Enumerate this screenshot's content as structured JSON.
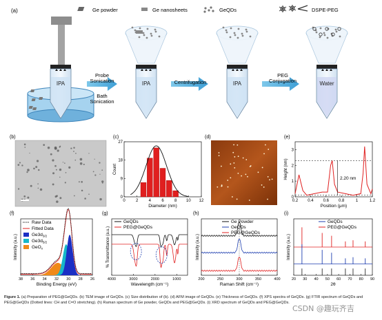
{
  "panel_labels": [
    "(a)",
    "(b)",
    "(c)",
    "(d)",
    "(e)",
    "(f)",
    "(g)",
    "(h)",
    "(i)"
  ],
  "scheme": {
    "legend": {
      "ge_powder": "Ge powder",
      "ge_nanosheets": "Ge nanosheets",
      "geqds": "GeQDs",
      "dspe_peg": "DSPE-PEG"
    },
    "tube_labels": [
      "IPA",
      "IPA",
      "IPA",
      "Water"
    ],
    "steps": {
      "probe_sonication_1": "Probe",
      "probe_sonication_2": "Sonication",
      "bath_sonication_1": "Bath",
      "bath_sonication_2": "Sonication",
      "centrifugation": "Centrifugation",
      "peg_conjugation_1": "PEG",
      "peg_conjugation_2": "Conjugation"
    }
  },
  "chart_data": [
    {
      "id": "c",
      "type": "bar",
      "categories": [
        3,
        4,
        5,
        6,
        7,
        8
      ],
      "values": [
        7,
        19,
        24,
        14,
        8,
        3
      ],
      "fit": "gaussian",
      "xlabel": "Diameter (nm)",
      "ylabel": "Count",
      "xticks": [
        0,
        2,
        4,
        6,
        8,
        10,
        12
      ],
      "yticks": [
        0,
        9,
        18,
        27
      ],
      "xlim": [
        0,
        12
      ],
      "ylim": [
        0,
        27
      ]
    },
    {
      "id": "e",
      "type": "line",
      "x": [
        0.2,
        0.25,
        0.3,
        0.35,
        0.45,
        0.55,
        0.62,
        0.66,
        0.68,
        0.71,
        0.75,
        0.85,
        0.95,
        1.05,
        1.08,
        1.1,
        1.13,
        1.18,
        1.2
      ],
      "y": [
        0.2,
        1.4,
        0.4,
        0.1,
        0.2,
        0.3,
        0.3,
        2.0,
        2.3,
        0.8,
        0.3,
        0.2,
        0.1,
        0.2,
        1.5,
        3.2,
        0.8,
        0.2,
        0.5
      ],
      "xlabel": "Position (μm)",
      "ylabel": "Height (nm)",
      "xticks": [
        0.2,
        0.4,
        0.6,
        0.8,
        1.0,
        1.2
      ],
      "yticks": [
        0,
        1,
        2,
        3
      ],
      "xlim": [
        0.2,
        1.2
      ],
      "ylim": [
        0,
        3.5
      ],
      "annotation": "2.20 nm",
      "dashed_levels": [
        2.3,
        0.1
      ]
    },
    {
      "id": "f",
      "type": "area",
      "xlabel": "Binding Energy (eV)",
      "ylabel": "Intensity (a.u.)",
      "xticks": [
        38,
        36,
        34,
        32,
        30,
        28,
        26
      ],
      "xlim": [
        38,
        26
      ],
      "series": [
        {
          "name": "Raw Data",
          "peak": 30.0
        },
        {
          "name": "Fitted Data",
          "peak": 30.0
        },
        {
          "name": "Ge3d",
          "sub": "3/2",
          "peak": 29.8
        },
        {
          "name": "Ge3d",
          "sub": "5/2",
          "peak": 30.4
        },
        {
          "name": "GeO",
          "sub": "x",
          "peak": 31.8
        }
      ]
    },
    {
      "id": "g",
      "type": "line",
      "xlabel": "Wavelength (cm⁻¹)",
      "ylabel": "% Transmittance (a.u.)",
      "xticks": [
        4000,
        3000,
        2000,
        1000
      ],
      "xlim": [
        4000,
        500
      ],
      "series": [
        {
          "name": "GeQDs"
        },
        {
          "name": "PEG@GeQDs"
        }
      ]
    },
    {
      "id": "h",
      "type": "line",
      "xlabel": "Raman Shift (cm⁻¹)",
      "ylabel": "Intensity (a.u.)",
      "xticks": [
        200,
        250,
        300,
        350,
        400
      ],
      "xlim": [
        200,
        400
      ],
      "series": [
        {
          "name": "Ge Powder",
          "peak": 300
        },
        {
          "name": "GeQDs",
          "peak": 300
        },
        {
          "name": "PEG@GeQDs",
          "peak": 300
        }
      ]
    },
    {
      "id": "i",
      "type": "line",
      "xlabel": "2θ",
      "ylabel": "Intensity (a.u.)",
      "xticks": [
        20,
        30,
        40,
        50,
        60,
        70,
        80,
        90
      ],
      "xlim": [
        20,
        90
      ],
      "peaks": [
        27.3,
        45.3,
        53.7,
        66.0,
        72.8,
        83.7
      ],
      "series": [
        {
          "name": "GeQDs"
        },
        {
          "name": "PEG@GeQDs"
        }
      ]
    }
  ],
  "caption": {
    "fig": "Figure 1.",
    "text": "(a) Preparation of PEG@GeQDs. (b) TEM image of GeQDs. (c) Size distribution of (b). (d) AFM image of GeQDs. (e) Thickness of GeQDs. (f) XPS spectra of GeQDs. (g) FTIR spectrum of GeQDs and PEG@GeQDs (Dotted lines: CH and C=O stretching). (h) Raman spectrum of Ge powder, GeQDs and PEG@GeQDs. (i) XRD spectrum of GeQDs and PEG@GeQDs."
  },
  "watermark": "CSDN @趣玩齐吉",
  "colors": {
    "red": "#e01f1f",
    "blue": "#1f3fb0",
    "black": "#111111",
    "liquid": "#a8cff0",
    "afm": "#b0501a"
  }
}
